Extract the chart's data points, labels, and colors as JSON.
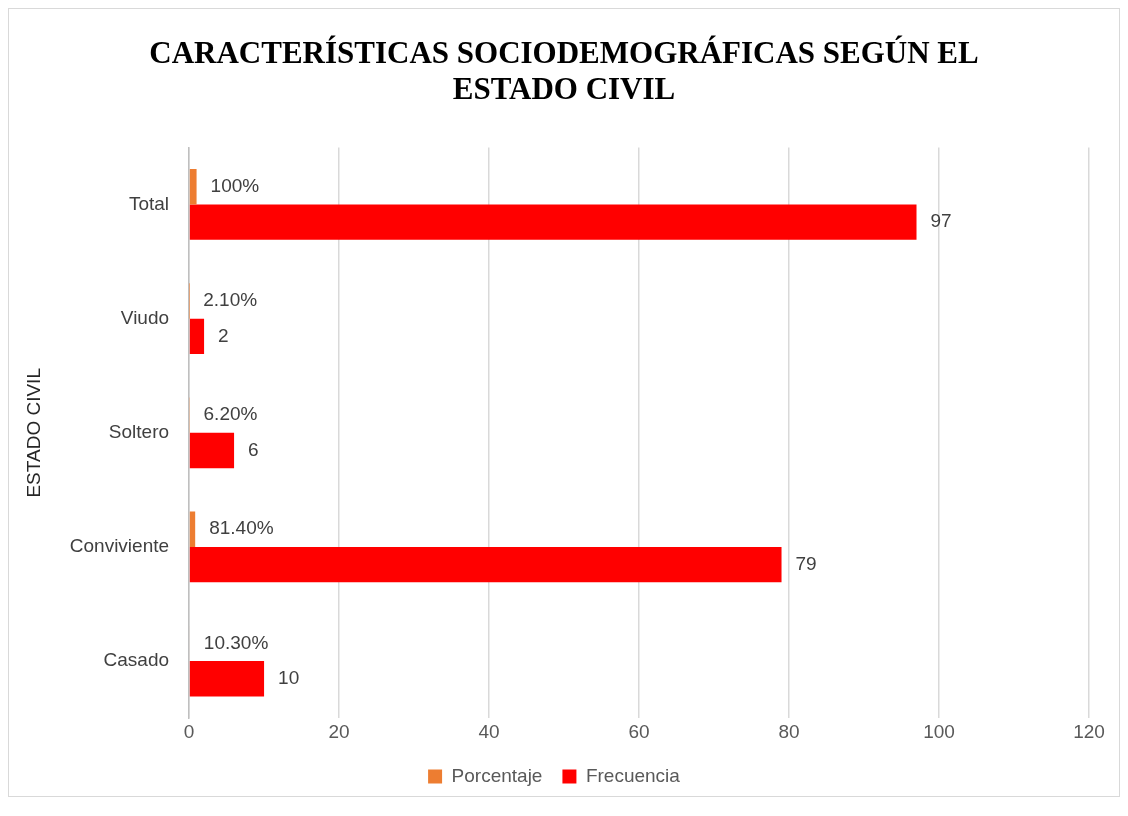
{
  "chart_data": {
    "type": "bar",
    "orientation": "horizontal",
    "title": "CARACTERÍSTICAS SOCIODEMOGRÁFICAS SEGÚN EL ESTADO CIVIL",
    "ylabel": "ESTADO CIVIL",
    "categories": [
      "Total",
      "Viudo",
      "Soltero",
      "Conviviente",
      "Casado"
    ],
    "series": [
      {
        "name": "Porcentaje",
        "color": "#ed7d31",
        "values": [
          1,
          0.021,
          0.062,
          0.814,
          0.103
        ],
        "value_labels": [
          "100%",
          "2.10%",
          "6.20%",
          "81.40%",
          "10.30%"
        ]
      },
      {
        "name": "Frecuencia",
        "color": "#ff0000",
        "values": [
          97,
          2,
          6,
          79,
          10
        ],
        "value_labels": [
          "97",
          "2",
          "6",
          "79",
          "10"
        ]
      }
    ],
    "xlim": [
      0,
      120
    ],
    "xticks": [
      0,
      20,
      40,
      60,
      80,
      100,
      120
    ],
    "grid": "x",
    "legend": "bottom"
  }
}
